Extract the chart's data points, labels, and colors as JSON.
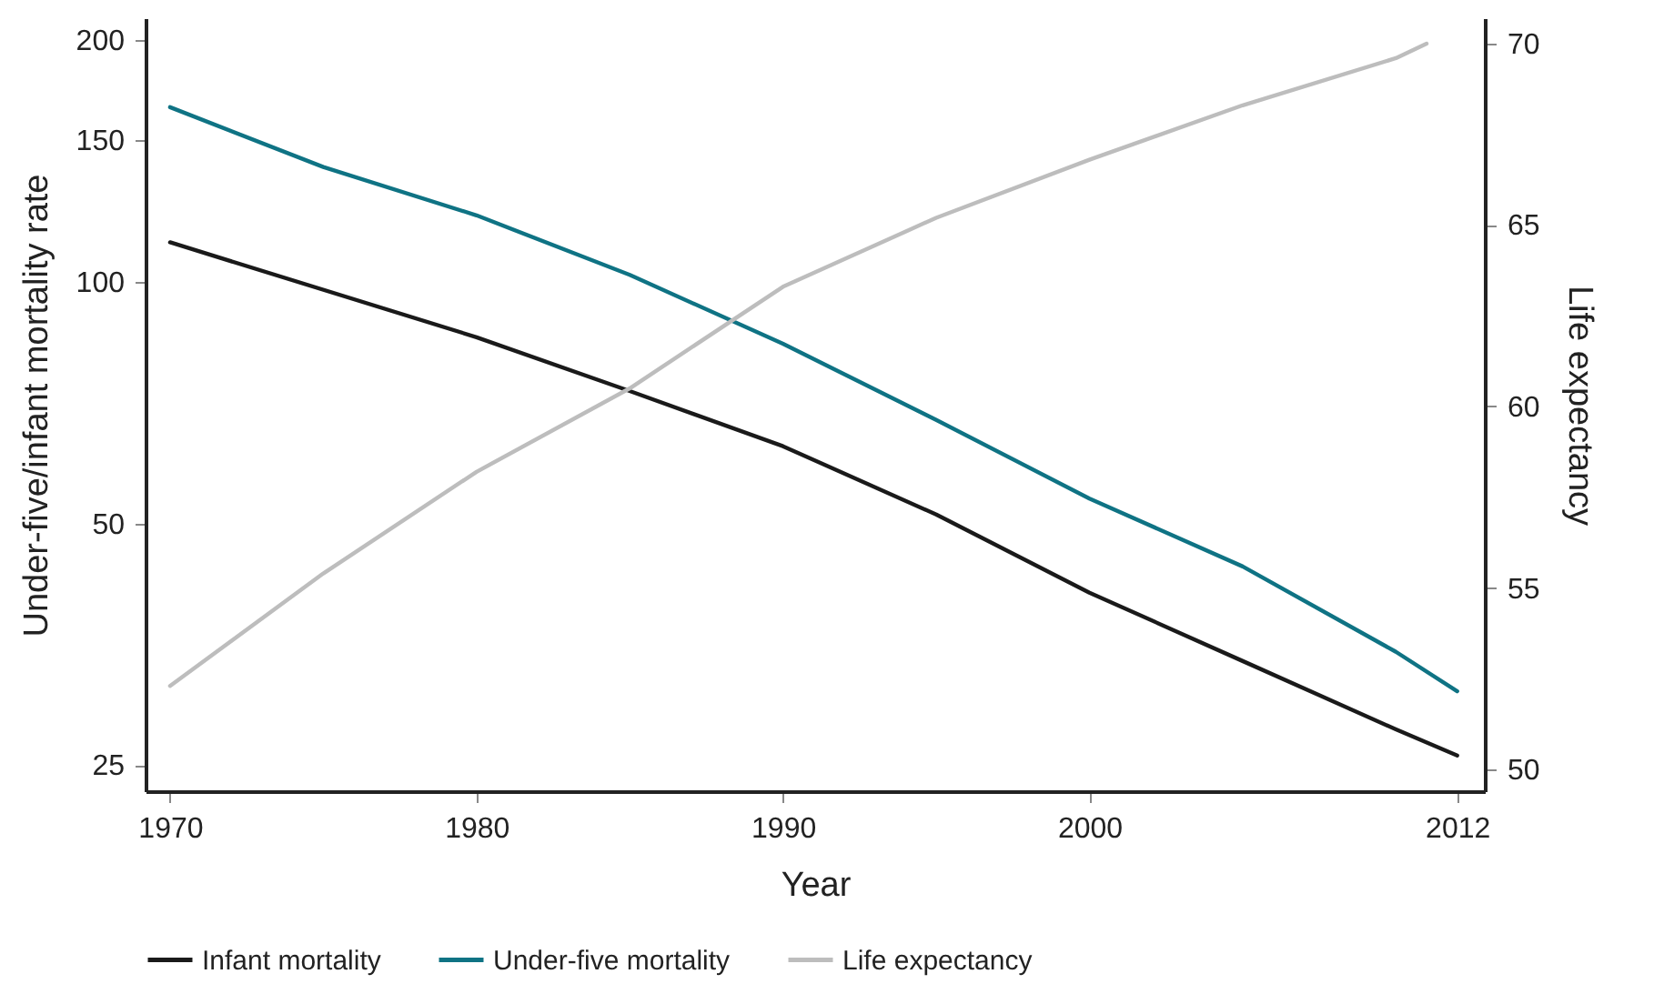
{
  "chart_data": {
    "type": "line",
    "xlabel": "Year",
    "ylabel": "Under-five/infant mortality rate",
    "y2label": "Life expectancy",
    "log": "y",
    "legend": "bottom",
    "grid": false,
    "marker": "none",
    "line_style": "solid",
    "xlim": [
      1969.2,
      2012.9
    ],
    "xticks": [
      1970,
      1980,
      1990,
      2000,
      2012
    ],
    "ylim": [
      23.2,
      213
    ],
    "yticks": [
      25,
      50,
      100,
      150,
      200
    ],
    "y2lim": [
      49.4,
      70.7
    ],
    "y2ticks": [
      50,
      55,
      60,
      65,
      70
    ],
    "series": [
      {
        "name": "Infant mortality",
        "color": "#1a1a1a",
        "x": [
          1970,
          1980,
          1985,
          1990,
          1995,
          2000,
          2005,
          2010,
          2012
        ],
        "values": [
          112,
          85.3,
          73.1,
          62.4,
          51.3,
          41,
          33.7,
          27.7,
          25.7
        ]
      },
      {
        "name": "Under-five mortality",
        "color": "#0f7384",
        "x": [
          1970,
          1975,
          1980,
          1985,
          1990,
          1995,
          2000,
          2005,
          2010,
          2012
        ],
        "values": [
          165,
          139,
          121,
          102,
          83.7,
          67.3,
          53.7,
          44.2,
          34.6,
          30.9
        ]
      },
      {
        "name": "Life expectancy",
        "color": "#bdbdbd",
        "axis": "y2",
        "x": [
          1970,
          1975,
          1980,
          1985,
          1990,
          1995,
          2000,
          2005,
          2010,
          2011
        ],
        "values": [
          52.3,
          55.4,
          58.2,
          60.5,
          63.3,
          65.2,
          66.8,
          68.3,
          69.6,
          70
        ]
      }
    ]
  }
}
